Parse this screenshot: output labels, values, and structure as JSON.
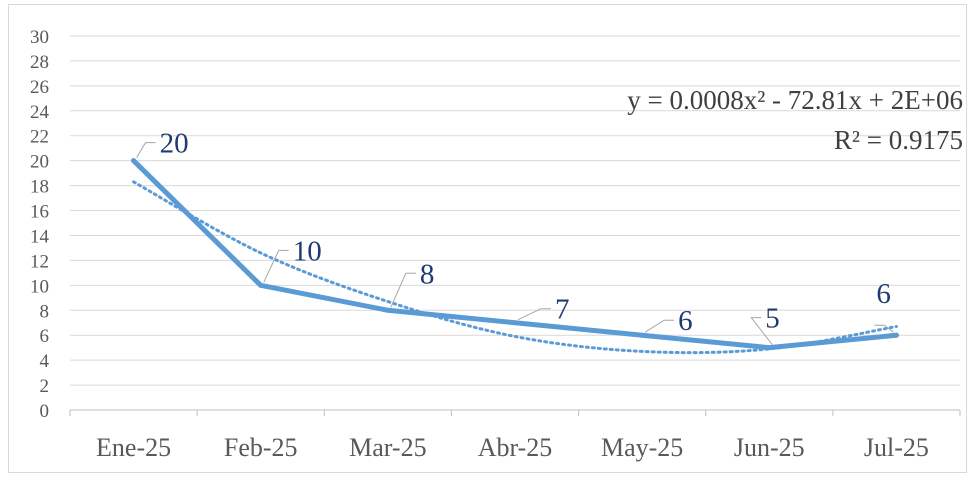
{
  "chart_data": {
    "type": "line",
    "title": "",
    "xlabel": "",
    "ylabel": "",
    "categories": [
      "Ene-25",
      "Feb-25",
      "Mar-25",
      "Abr-25",
      "May-25",
      "Jun-25",
      "Jul-25"
    ],
    "series": [
      {
        "values": [
          20,
          10,
          8,
          7,
          6,
          5,
          6
        ],
        "color": "#5b9bd5",
        "data_labels": [
          "20",
          "10",
          "8",
          "7",
          "6",
          "5",
          "6"
        ]
      }
    ],
    "trendline": {
      "type": "polynomial",
      "order": 2,
      "style": "dotted",
      "color": "#5b9bd5",
      "fitted_values": [
        18.3,
        12.6,
        8.7,
        5.9,
        4.7,
        4.9,
        6.7
      ],
      "equation": "y = 0.0008x² - 72.81x + 2E+06",
      "r_squared": "R² = 0.9175"
    },
    "ylim": [
      0,
      30
    ],
    "yticks": [
      "0",
      "2",
      "4",
      "6",
      "8",
      "10",
      "12",
      "14",
      "16",
      "18",
      "20",
      "22",
      "24",
      "26",
      "28",
      "30"
    ],
    "grid": true,
    "legend": "none",
    "colors": {
      "grid": "#d9d9d9",
      "axis": "#bfbfbf",
      "tick_text": "#595959",
      "data_label_text": "#1f3b73",
      "leader_line": "#a6a6a6",
      "equation_text": "#404040"
    }
  }
}
